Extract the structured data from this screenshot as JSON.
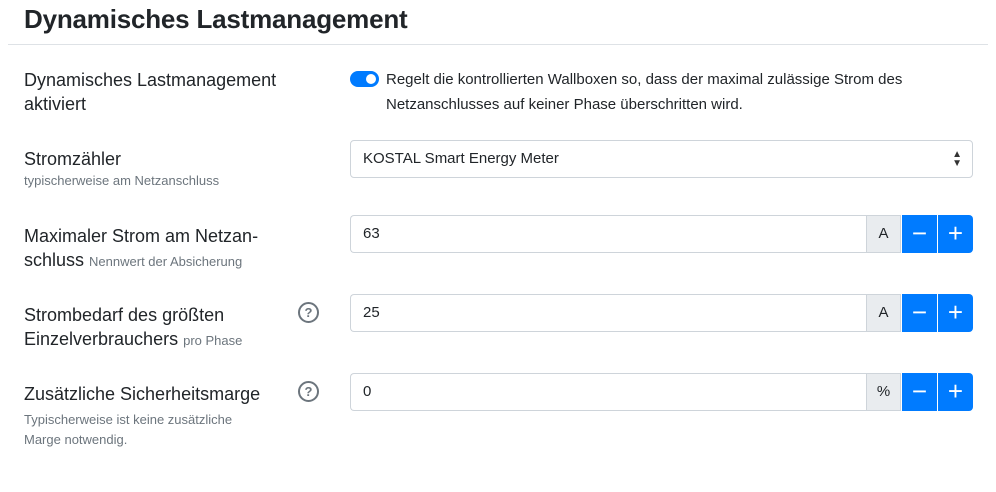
{
  "title": "Dynamisches Lastmanagement",
  "enabled": {
    "label": "Dynamisches Lastmanagement aktiviert",
    "checked": true,
    "description": "Regelt die kontrollierten Wallboxen so, dass der maximal zulässige Strom des Netzanschlusses auf keiner Phase überschritten wird.",
    "accent": "#007bff"
  },
  "meter": {
    "label": "Stromzähler",
    "hint": "typischerweise am Netzanschluss",
    "value": "KOSTAL Smart Energy Meter"
  },
  "max_current": {
    "label": "Maximaler Strom am Netzan­schluss",
    "hint": "Nennwert der Absicherung",
    "value": "63",
    "unit": "A"
  },
  "largest_consumer": {
    "label": "Strombedarf des größten Einzelverbrauchers",
    "hint": "pro Phase",
    "value": "25",
    "unit": "A",
    "help": "?"
  },
  "margin": {
    "label": "Zusätzliche Sicherheits­marge",
    "hint": "Typischerweise ist keine zusätzliche Marge notwendig.",
    "value": "0",
    "unit": "%",
    "help": "?"
  },
  "buttons": {
    "minus": "−",
    "plus": "+"
  }
}
